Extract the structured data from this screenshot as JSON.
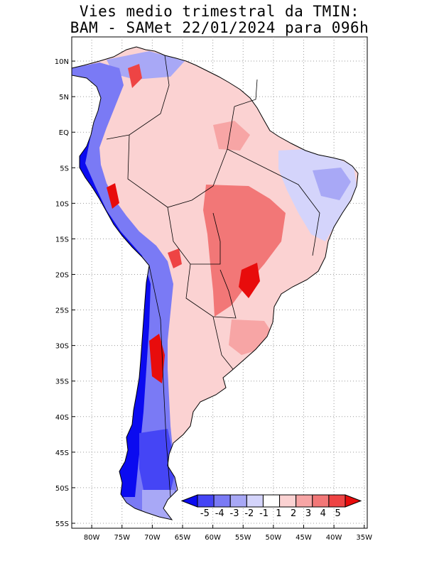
{
  "title": {
    "line1": "Vies medio trimestral da TMIN:",
    "line2": "BAM - SAMet 22/01/2024  para 096h"
  },
  "axes": {
    "lat_labels": [
      "10N",
      "5N",
      "EQ",
      "5S",
      "10S",
      "15S",
      "20S",
      "25S",
      "30S",
      "35S",
      "40S",
      "45S",
      "50S",
      "55S"
    ],
    "lat_values": [
      10,
      5,
      0,
      -5,
      -10,
      -15,
      -20,
      -25,
      -30,
      -35,
      -40,
      -45,
      -50,
      -55
    ],
    "lon_labels": [
      "80W",
      "75W",
      "70W",
      "65W",
      "60W",
      "55W",
      "50W",
      "45W",
      "40W",
      "35W"
    ],
    "lon_values": [
      -80,
      -75,
      -70,
      -65,
      -60,
      -55,
      -50,
      -45,
      -40,
      -35
    ],
    "lat_range": [
      -55.7,
      13.4
    ],
    "lon_range": [
      -83.3,
      -34.5
    ],
    "grid": "dotted"
  },
  "colorbar": {
    "labels": [
      "-5",
      "-4",
      "-3",
      "-2",
      "-1",
      "1",
      "2",
      "3",
      "4",
      "5"
    ],
    "colors": [
      "#0b0bf0",
      "#4545f5",
      "#7a7af5",
      "#a8a8f6",
      "#d4d4fb",
      "#ffffff",
      "#fbd2d2",
      "#f7a5a5",
      "#f27777",
      "#ee4444",
      "#e80c0c"
    ],
    "placement": "bottom-right"
  },
  "colors": {
    "strong_negative": "#0b0bf0",
    "negative": "#7a7af5",
    "weak_negative": "#d4d4fb",
    "neutral": "#ffffff",
    "weak_positive": "#fbd2d2",
    "positive": "#f27777",
    "strong_positive": "#e80c0c"
  }
}
